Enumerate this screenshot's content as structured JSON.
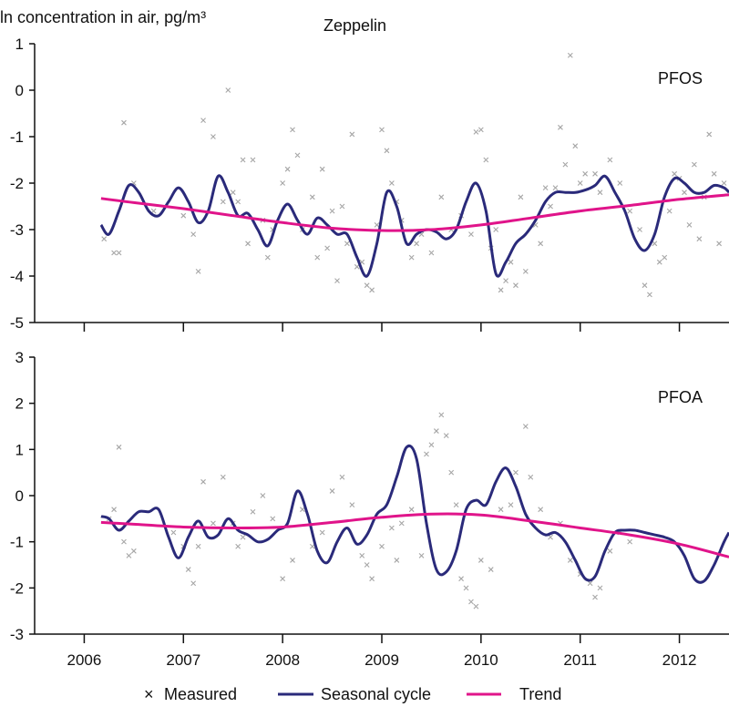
{
  "chart_data": {
    "type": "line",
    "ylabel": "ln concentration in air, pg/m³",
    "title": "Zeppelin",
    "x_tick_labels": [
      "2006",
      "2007",
      "2008",
      "2009",
      "2010",
      "2011",
      "2012"
    ],
    "xlim": [
      2005.5,
      2012.5
    ],
    "colors": {
      "measured": "#a6a6a6",
      "seasonal": "#2a2a7a",
      "trend": "#e0148a",
      "axis": "#111111"
    },
    "legend": [
      {
        "key": "measured",
        "label": "Measured",
        "marker": "×"
      },
      {
        "key": "seasonal",
        "label": "Seasonal cycle"
      },
      {
        "key": "trend",
        "label": "Trend"
      }
    ],
    "panels": [
      {
        "name": "PFOS",
        "ylim": [
          -5,
          1
        ],
        "yticks": [
          "1",
          "0",
          "-1",
          "-2",
          "-3",
          "-4",
          "-5"
        ],
        "series": [
          {
            "name": "Seasonal cycle",
            "x": [
              2006.17,
              2006.25,
              2006.35,
              2006.45,
              2006.55,
              2006.65,
              2006.75,
              2006.85,
              2006.95,
              2007.05,
              2007.15,
              2007.25,
              2007.35,
              2007.45,
              2007.55,
              2007.65,
              2007.75,
              2007.85,
              2007.95,
              2008.05,
              2008.15,
              2008.25,
              2008.35,
              2008.45,
              2008.55,
              2008.65,
              2008.75,
              2008.85,
              2008.95,
              2009.05,
              2009.15,
              2009.25,
              2009.35,
              2009.45,
              2009.55,
              2009.65,
              2009.75,
              2009.85,
              2009.95,
              2010.05,
              2010.15,
              2010.25,
              2010.35,
              2010.45,
              2010.55,
              2010.65,
              2010.75,
              2010.85,
              2010.95,
              2011.05,
              2011.15,
              2011.25,
              2011.35,
              2011.45,
              2011.55,
              2011.65,
              2011.75,
              2011.85,
              2011.95,
              2012.05,
              2012.15,
              2012.25,
              2012.35,
              2012.45,
              2012.5
            ],
            "y": [
              -2.9,
              -3.1,
              -2.6,
              -2.05,
              -2.2,
              -2.6,
              -2.7,
              -2.4,
              -2.1,
              -2.4,
              -2.85,
              -2.6,
              -1.85,
              -2.2,
              -2.7,
              -2.65,
              -3.0,
              -3.35,
              -2.8,
              -2.45,
              -2.8,
              -3.1,
              -2.75,
              -2.9,
              -3.1,
              -3.1,
              -3.6,
              -4.0,
              -3.3,
              -2.2,
              -2.5,
              -3.3,
              -3.1,
              -3.0,
              -3.05,
              -3.2,
              -3.0,
              -2.4,
              -2.0,
              -2.6,
              -3.95,
              -3.7,
              -3.3,
              -3.1,
              -2.8,
              -2.4,
              -2.2,
              -2.2,
              -2.2,
              -2.15,
              -2.05,
              -1.85,
              -2.2,
              -2.6,
              -3.2,
              -3.45,
              -3.1,
              -2.3,
              -1.9,
              -2.0,
              -2.2,
              -2.2,
              -2.05,
              -2.1,
              -2.2
            ]
          },
          {
            "name": "Trend",
            "x": [
              2006.17,
              2006.5,
              2007.0,
              2007.5,
              2008.0,
              2008.5,
              2009.0,
              2009.5,
              2010.0,
              2010.5,
              2011.0,
              2011.5,
              2012.0,
              2012.5
            ],
            "y": [
              -2.33,
              -2.42,
              -2.55,
              -2.7,
              -2.85,
              -2.97,
              -3.02,
              -3.0,
              -2.9,
              -2.75,
              -2.6,
              -2.48,
              -2.35,
              -2.25
            ]
          }
        ],
        "measured": [
          [
            2006.2,
            -3.2
          ],
          [
            2006.3,
            -3.5
          ],
          [
            2006.35,
            -3.5
          ],
          [
            2006.4,
            -0.7
          ],
          [
            2006.5,
            -2.0
          ],
          [
            2006.7,
            -2.6
          ],
          [
            2007.0,
            -2.7
          ],
          [
            2007.1,
            -3.1
          ],
          [
            2007.15,
            -3.9
          ],
          [
            2007.2,
            -0.65
          ],
          [
            2007.3,
            -1.0
          ],
          [
            2007.4,
            -2.4
          ],
          [
            2007.45,
            0.0
          ],
          [
            2007.5,
            -2.2
          ],
          [
            2007.55,
            -2.4
          ],
          [
            2007.6,
            -1.5
          ],
          [
            2007.65,
            -3.3
          ],
          [
            2007.7,
            -1.5
          ],
          [
            2007.8,
            -2.8
          ],
          [
            2007.85,
            -3.6
          ],
          [
            2007.9,
            -3.0
          ],
          [
            2008.0,
            -2.0
          ],
          [
            2008.05,
            -1.7
          ],
          [
            2008.1,
            -0.85
          ],
          [
            2008.15,
            -1.4
          ],
          [
            2008.2,
            -3.0
          ],
          [
            2008.3,
            -2.3
          ],
          [
            2008.35,
            -3.6
          ],
          [
            2008.4,
            -1.7
          ],
          [
            2008.45,
            -3.4
          ],
          [
            2008.5,
            -2.6
          ],
          [
            2008.55,
            -4.1
          ],
          [
            2008.6,
            -2.5
          ],
          [
            2008.65,
            -3.3
          ],
          [
            2008.7,
            -0.95
          ],
          [
            2008.75,
            -3.8
          ],
          [
            2008.8,
            -3.7
          ],
          [
            2008.85,
            -4.2
          ],
          [
            2008.9,
            -4.3
          ],
          [
            2008.95,
            -2.9
          ],
          [
            2009.0,
            -0.85
          ],
          [
            2009.05,
            -1.3
          ],
          [
            2009.1,
            -2.0
          ],
          [
            2009.15,
            -2.4
          ],
          [
            2009.2,
            -2.8
          ],
          [
            2009.3,
            -3.6
          ],
          [
            2009.35,
            -3.3
          ],
          [
            2009.4,
            -3.1
          ],
          [
            2009.5,
            -3.5
          ],
          [
            2009.6,
            -2.3
          ],
          [
            2009.7,
            -3.0
          ],
          [
            2009.8,
            -2.7
          ],
          [
            2009.9,
            -3.1
          ],
          [
            2009.95,
            -0.9
          ],
          [
            2010.0,
            -0.85
          ],
          [
            2010.05,
            -1.5
          ],
          [
            2010.1,
            -3.4
          ],
          [
            2010.15,
            -3.0
          ],
          [
            2010.2,
            -4.3
          ],
          [
            2010.25,
            -4.1
          ],
          [
            2010.3,
            -3.7
          ],
          [
            2010.35,
            -4.2
          ],
          [
            2010.4,
            -2.3
          ],
          [
            2010.45,
            -3.9
          ],
          [
            2010.55,
            -2.9
          ],
          [
            2010.6,
            -3.3
          ],
          [
            2010.65,
            -2.1
          ],
          [
            2010.7,
            -2.5
          ],
          [
            2010.75,
            -2.1
          ],
          [
            2010.8,
            -0.8
          ],
          [
            2010.85,
            -1.6
          ],
          [
            2010.9,
            0.75
          ],
          [
            2010.95,
            -1.2
          ],
          [
            2011.0,
            -2.0
          ],
          [
            2011.05,
            -1.8
          ],
          [
            2011.15,
            -1.8
          ],
          [
            2011.2,
            -2.2
          ],
          [
            2011.3,
            -1.5
          ],
          [
            2011.4,
            -2.0
          ],
          [
            2011.5,
            -2.6
          ],
          [
            2011.6,
            -3.0
          ],
          [
            2011.65,
            -4.2
          ],
          [
            2011.7,
            -4.4
          ],
          [
            2011.75,
            -3.3
          ],
          [
            2011.8,
            -3.7
          ],
          [
            2011.85,
            -3.6
          ],
          [
            2011.9,
            -2.6
          ],
          [
            2011.95,
            -1.8
          ],
          [
            2012.0,
            -1.9
          ],
          [
            2012.05,
            -2.2
          ],
          [
            2012.1,
            -2.9
          ],
          [
            2012.15,
            -1.6
          ],
          [
            2012.2,
            -3.2
          ],
          [
            2012.25,
            -2.3
          ],
          [
            2012.3,
            -0.95
          ],
          [
            2012.35,
            -1.8
          ],
          [
            2012.4,
            -3.3
          ],
          [
            2012.45,
            -2.0
          ]
        ]
      },
      {
        "name": "PFOA",
        "ylim": [
          -3,
          3
        ],
        "yticks": [
          "3",
          "2",
          "1",
          "0",
          "-1",
          "-2",
          "-3"
        ],
        "series": [
          {
            "name": "Seasonal cycle",
            "x": [
              2006.17,
              2006.25,
              2006.35,
              2006.45,
              2006.55,
              2006.65,
              2006.75,
              2006.85,
              2006.95,
              2007.05,
              2007.15,
              2007.25,
              2007.35,
              2007.45,
              2007.55,
              2007.65,
              2007.75,
              2007.85,
              2007.95,
              2008.05,
              2008.15,
              2008.25,
              2008.35,
              2008.45,
              2008.55,
              2008.65,
              2008.75,
              2008.85,
              2008.95,
              2009.05,
              2009.15,
              2009.25,
              2009.35,
              2009.45,
              2009.55,
              2009.65,
              2009.75,
              2009.85,
              2009.95,
              2010.05,
              2010.15,
              2010.25,
              2010.35,
              2010.45,
              2010.55,
              2010.65,
              2010.75,
              2010.85,
              2010.95,
              2011.05,
              2011.15,
              2011.25,
              2011.35,
              2011.45,
              2011.55,
              2011.65,
              2011.75,
              2011.85,
              2011.95,
              2012.05,
              2012.15,
              2012.25,
              2012.35,
              2012.45,
              2012.5
            ],
            "y": [
              -0.45,
              -0.5,
              -0.75,
              -0.55,
              -0.35,
              -0.35,
              -0.3,
              -0.9,
              -1.35,
              -0.9,
              -0.55,
              -0.9,
              -0.85,
              -0.5,
              -0.75,
              -0.85,
              -1.0,
              -0.95,
              -0.75,
              -0.6,
              0.1,
              -0.4,
              -1.2,
              -1.45,
              -1.0,
              -0.7,
              -1.05,
              -0.85,
              -0.4,
              -0.2,
              0.4,
              1.05,
              0.8,
              -0.6,
              -1.6,
              -1.65,
              -1.2,
              -0.3,
              -0.1,
              -0.2,
              0.3,
              0.6,
              0.2,
              -0.4,
              -0.7,
              -0.85,
              -0.8,
              -1.0,
              -1.4,
              -1.8,
              -1.75,
              -1.2,
              -0.8,
              -0.75,
              -0.75,
              -0.8,
              -0.85,
              -0.9,
              -1.0,
              -1.3,
              -1.8,
              -1.85,
              -1.5,
              -1.0,
              -0.8
            ]
          },
          {
            "name": "Trend",
            "x": [
              2006.17,
              2006.5,
              2007.0,
              2007.5,
              2008.0,
              2008.5,
              2009.0,
              2009.5,
              2010.0,
              2010.5,
              2011.0,
              2011.5,
              2012.0,
              2012.5
            ],
            "y": [
              -0.58,
              -0.62,
              -0.68,
              -0.7,
              -0.68,
              -0.58,
              -0.47,
              -0.4,
              -0.42,
              -0.55,
              -0.7,
              -0.85,
              -1.05,
              -1.33
            ]
          }
        ],
        "measured": [
          [
            2006.25,
            -0.5
          ],
          [
            2006.3,
            -0.3
          ],
          [
            2006.35,
            1.05
          ],
          [
            2006.4,
            -1.0
          ],
          [
            2006.45,
            -1.3
          ],
          [
            2006.5,
            -1.2
          ],
          [
            2006.9,
            -0.8
          ],
          [
            2007.0,
            -1.1
          ],
          [
            2007.05,
            -1.6
          ],
          [
            2007.1,
            -1.9
          ],
          [
            2007.15,
            -1.1
          ],
          [
            2007.2,
            0.3
          ],
          [
            2007.3,
            -0.6
          ],
          [
            2007.4,
            0.4
          ],
          [
            2007.5,
            -0.6
          ],
          [
            2007.55,
            -1.1
          ],
          [
            2007.6,
            -0.9
          ],
          [
            2007.7,
            -0.35
          ],
          [
            2007.8,
            0.0
          ],
          [
            2007.9,
            -0.5
          ],
          [
            2008.0,
            -1.8
          ],
          [
            2008.1,
            -1.4
          ],
          [
            2008.2,
            -0.3
          ],
          [
            2008.3,
            -1.1
          ],
          [
            2008.4,
            -0.8
          ],
          [
            2008.5,
            0.1
          ],
          [
            2008.6,
            0.4
          ],
          [
            2008.7,
            -0.2
          ],
          [
            2008.8,
            -1.3
          ],
          [
            2008.85,
            -1.5
          ],
          [
            2008.9,
            -1.8
          ],
          [
            2009.0,
            -1.1
          ],
          [
            2009.1,
            -0.7
          ],
          [
            2009.15,
            -1.4
          ],
          [
            2009.2,
            -0.6
          ],
          [
            2009.3,
            -0.3
          ],
          [
            2009.4,
            -1.3
          ],
          [
            2009.45,
            0.9
          ],
          [
            2009.5,
            1.1
          ],
          [
            2009.55,
            1.4
          ],
          [
            2009.6,
            1.75
          ],
          [
            2009.65,
            1.3
          ],
          [
            2009.7,
            0.5
          ],
          [
            2009.75,
            -0.2
          ],
          [
            2009.8,
            -1.8
          ],
          [
            2009.85,
            -2.0
          ],
          [
            2009.9,
            -2.3
          ],
          [
            2009.95,
            -2.4
          ],
          [
            2010.0,
            -1.4
          ],
          [
            2010.1,
            -1.6
          ],
          [
            2010.2,
            -0.3
          ],
          [
            2010.3,
            -0.2
          ],
          [
            2010.35,
            0.5
          ],
          [
            2010.45,
            1.5
          ],
          [
            2010.5,
            0.4
          ],
          [
            2010.6,
            -0.3
          ],
          [
            2010.7,
            -0.9
          ],
          [
            2010.8,
            -0.6
          ],
          [
            2010.9,
            -1.4
          ],
          [
            2011.0,
            -1.7
          ],
          [
            2011.1,
            -1.9
          ],
          [
            2011.15,
            -2.2
          ],
          [
            2011.2,
            -2.0
          ],
          [
            2011.3,
            -1.2
          ],
          [
            2011.4,
            -0.8
          ],
          [
            2011.5,
            -1.0
          ]
        ]
      }
    ]
  }
}
